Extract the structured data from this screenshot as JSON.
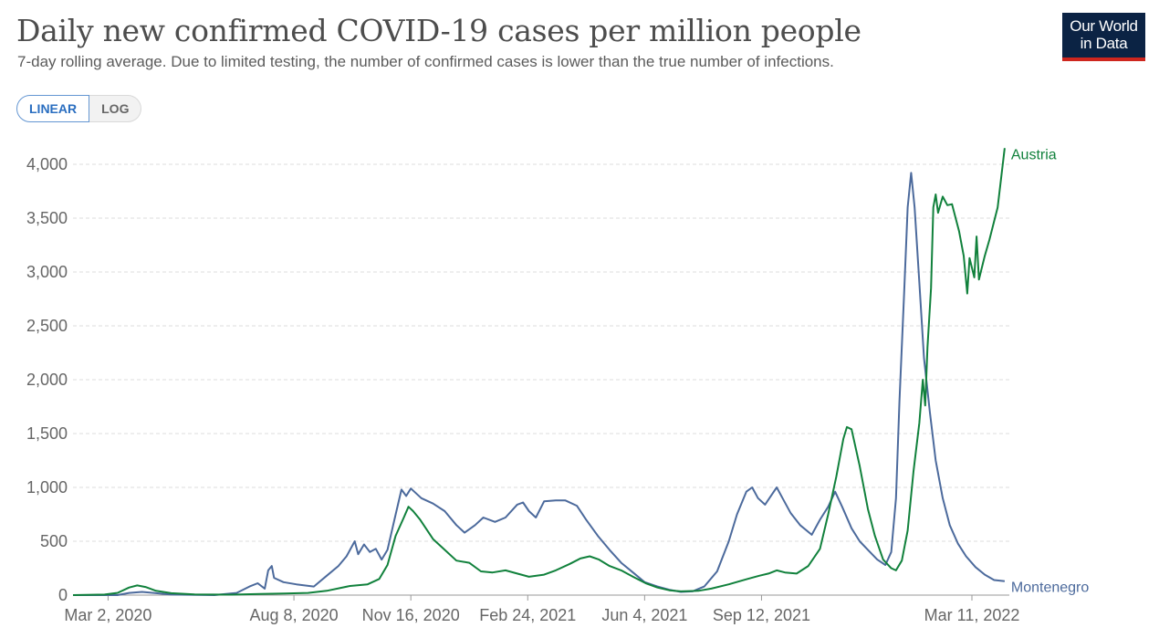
{
  "header": {
    "title": "Daily new confirmed COVID-19 cases per million people",
    "subtitle": "7-day rolling average. Due to limited testing, the number of confirmed cases is lower than the true number of infections."
  },
  "logo": {
    "line1": "Our World",
    "line2": "in Data",
    "bg_color": "#0b2344",
    "accent_color": "#ce261e"
  },
  "scale_toggle": {
    "linear_label": "LINEAR",
    "log_label": "LOG",
    "selected": "LINEAR"
  },
  "chart_data": {
    "type": "line",
    "title": "Daily new confirmed COVID-19 cases per million people",
    "x_start": "2020-02-01",
    "x_end": "2022-04-12",
    "ylim": [
      0,
      4200
    ],
    "y_ticks": [
      {
        "value": 0,
        "label": "0"
      },
      {
        "value": 500,
        "label": "500"
      },
      {
        "value": 1000,
        "label": "1,000"
      },
      {
        "value": 1500,
        "label": "1,500"
      },
      {
        "value": 2000,
        "label": "2,000"
      },
      {
        "value": 2500,
        "label": "2,500"
      },
      {
        "value": 3000,
        "label": "3,000"
      },
      {
        "value": 3500,
        "label": "3,500"
      },
      {
        "value": 4000,
        "label": "4,000"
      }
    ],
    "x_ticks": [
      {
        "date": "2020-03-02",
        "label": "Mar 2, 2020"
      },
      {
        "date": "2020-08-08",
        "label": "Aug 8, 2020"
      },
      {
        "date": "2020-11-16",
        "label": "Nov 16, 2020"
      },
      {
        "date": "2021-02-24",
        "label": "Feb 24, 2021"
      },
      {
        "date": "2021-06-04",
        "label": "Jun 4, 2021"
      },
      {
        "date": "2021-09-12",
        "label": "Sep 12, 2021"
      },
      {
        "date": "2022-03-11",
        "label": "Mar 11, 2022"
      }
    ],
    "grid": "horizontal dashed",
    "series": [
      {
        "name": "Austria",
        "color": "#11813c",
        "points": [
          [
            "2020-02-01",
            0
          ],
          [
            "2020-02-28",
            5
          ],
          [
            "2020-03-10",
            20
          ],
          [
            "2020-03-20",
            70
          ],
          [
            "2020-03-27",
            90
          ],
          [
            "2020-04-03",
            75
          ],
          [
            "2020-04-12",
            40
          ],
          [
            "2020-04-25",
            18
          ],
          [
            "2020-05-15",
            6
          ],
          [
            "2020-06-15",
            4
          ],
          [
            "2020-07-10",
            10
          ],
          [
            "2020-07-31",
            14
          ],
          [
            "2020-08-20",
            20
          ],
          [
            "2020-09-05",
            40
          ],
          [
            "2020-09-25",
            85
          ],
          [
            "2020-10-10",
            100
          ],
          [
            "2020-10-20",
            150
          ],
          [
            "2020-10-27",
            280
          ],
          [
            "2020-11-03",
            550
          ],
          [
            "2020-11-10",
            720
          ],
          [
            "2020-11-14",
            820
          ],
          [
            "2020-11-18",
            780
          ],
          [
            "2020-11-24",
            700
          ],
          [
            "2020-12-05",
            520
          ],
          [
            "2020-12-15",
            420
          ],
          [
            "2020-12-25",
            320
          ],
          [
            "2021-01-05",
            300
          ],
          [
            "2021-01-15",
            220
          ],
          [
            "2021-01-25",
            210
          ],
          [
            "2021-02-05",
            230
          ],
          [
            "2021-02-15",
            200
          ],
          [
            "2021-02-25",
            170
          ],
          [
            "2021-03-10",
            190
          ],
          [
            "2021-03-20",
            230
          ],
          [
            "2021-04-01",
            290
          ],
          [
            "2021-04-10",
            340
          ],
          [
            "2021-04-18",
            360
          ],
          [
            "2021-04-26",
            330
          ],
          [
            "2021-05-05",
            270
          ],
          [
            "2021-05-15",
            230
          ],
          [
            "2021-05-25",
            170
          ],
          [
            "2021-06-05",
            110
          ],
          [
            "2021-06-15",
            70
          ],
          [
            "2021-06-25",
            45
          ],
          [
            "2021-07-05",
            35
          ],
          [
            "2021-07-20",
            40
          ],
          [
            "2021-07-31",
            60
          ],
          [
            "2021-08-15",
            100
          ],
          [
            "2021-08-31",
            150
          ],
          [
            "2021-09-10",
            180
          ],
          [
            "2021-09-18",
            200
          ],
          [
            "2021-09-25",
            230
          ],
          [
            "2021-10-02",
            210
          ],
          [
            "2021-10-12",
            200
          ],
          [
            "2021-10-22",
            270
          ],
          [
            "2021-11-01",
            430
          ],
          [
            "2021-11-08",
            750
          ],
          [
            "2021-11-15",
            1100
          ],
          [
            "2021-11-21",
            1450
          ],
          [
            "2021-11-24",
            1560
          ],
          [
            "2021-11-28",
            1540
          ],
          [
            "2021-12-05",
            1200
          ],
          [
            "2021-12-12",
            800
          ],
          [
            "2021-12-18",
            550
          ],
          [
            "2021-12-25",
            330
          ],
          [
            "2022-01-01",
            250
          ],
          [
            "2022-01-05",
            230
          ],
          [
            "2022-01-10",
            320
          ],
          [
            "2022-01-15",
            600
          ],
          [
            "2022-01-20",
            1150
          ],
          [
            "2022-01-25",
            1600
          ],
          [
            "2022-01-28",
            2000
          ],
          [
            "2022-01-30",
            1760
          ],
          [
            "2022-02-01",
            2300
          ],
          [
            "2022-02-04",
            2850
          ],
          [
            "2022-02-06",
            3600
          ],
          [
            "2022-02-08",
            3720
          ],
          [
            "2022-02-10",
            3550
          ],
          [
            "2022-02-14",
            3700
          ],
          [
            "2022-02-18",
            3620
          ],
          [
            "2022-02-22",
            3630
          ],
          [
            "2022-02-28",
            3380
          ],
          [
            "2022-03-04",
            3150
          ],
          [
            "2022-03-07",
            2800
          ],
          [
            "2022-03-09",
            3130
          ],
          [
            "2022-03-13",
            2950
          ],
          [
            "2022-03-15",
            3330
          ],
          [
            "2022-03-17",
            2930
          ],
          [
            "2022-03-22",
            3150
          ],
          [
            "2022-03-26",
            3300
          ],
          [
            "2022-04-02",
            3600
          ],
          [
            "2022-04-08",
            4150
          ]
        ]
      },
      {
        "name": "Montenegro",
        "color": "#4c6a9c",
        "points": [
          [
            "2020-02-01",
            0
          ],
          [
            "2020-03-10",
            0
          ],
          [
            "2020-03-20",
            20
          ],
          [
            "2020-03-31",
            30
          ],
          [
            "2020-04-10",
            20
          ],
          [
            "2020-04-25",
            5
          ],
          [
            "2020-06-01",
            0
          ],
          [
            "2020-06-20",
            20
          ],
          [
            "2020-07-01",
            80
          ],
          [
            "2020-07-08",
            110
          ],
          [
            "2020-07-14",
            60
          ],
          [
            "2020-07-17",
            230
          ],
          [
            "2020-07-20",
            270
          ],
          [
            "2020-07-22",
            160
          ],
          [
            "2020-07-30",
            120
          ],
          [
            "2020-08-10",
            100
          ],
          [
            "2020-08-25",
            80
          ],
          [
            "2020-09-05",
            180
          ],
          [
            "2020-09-15",
            270
          ],
          [
            "2020-09-22",
            360
          ],
          [
            "2020-09-29",
            500
          ],
          [
            "2020-10-02",
            380
          ],
          [
            "2020-10-07",
            470
          ],
          [
            "2020-10-12",
            400
          ],
          [
            "2020-10-17",
            430
          ],
          [
            "2020-10-22",
            330
          ],
          [
            "2020-10-27",
            420
          ],
          [
            "2020-11-02",
            700
          ],
          [
            "2020-11-08",
            980
          ],
          [
            "2020-11-12",
            920
          ],
          [
            "2020-11-16",
            990
          ],
          [
            "2020-11-25",
            900
          ],
          [
            "2020-12-05",
            850
          ],
          [
            "2020-12-15",
            780
          ],
          [
            "2020-12-25",
            650
          ],
          [
            "2021-01-01",
            580
          ],
          [
            "2021-01-10",
            650
          ],
          [
            "2021-01-17",
            720
          ],
          [
            "2021-01-27",
            680
          ],
          [
            "2021-02-05",
            720
          ],
          [
            "2021-02-15",
            840
          ],
          [
            "2021-02-20",
            860
          ],
          [
            "2021-02-25",
            780
          ],
          [
            "2021-03-03",
            720
          ],
          [
            "2021-03-10",
            870
          ],
          [
            "2021-03-20",
            880
          ],
          [
            "2021-03-28",
            880
          ],
          [
            "2021-04-07",
            830
          ],
          [
            "2021-04-15",
            700
          ],
          [
            "2021-04-25",
            550
          ],
          [
            "2021-05-05",
            420
          ],
          [
            "2021-05-15",
            300
          ],
          [
            "2021-05-25",
            210
          ],
          [
            "2021-06-04",
            120
          ],
          [
            "2021-06-15",
            80
          ],
          [
            "2021-06-25",
            50
          ],
          [
            "2021-07-05",
            30
          ],
          [
            "2021-07-15",
            35
          ],
          [
            "2021-07-25",
            80
          ],
          [
            "2021-08-05",
            220
          ],
          [
            "2021-08-15",
            500
          ],
          [
            "2021-08-22",
            750
          ],
          [
            "2021-08-30",
            960
          ],
          [
            "2021-09-04",
            1000
          ],
          [
            "2021-09-09",
            900
          ],
          [
            "2021-09-15",
            840
          ],
          [
            "2021-09-20",
            920
          ],
          [
            "2021-09-25",
            1000
          ],
          [
            "2021-09-30",
            900
          ],
          [
            "2021-10-07",
            760
          ],
          [
            "2021-10-15",
            650
          ],
          [
            "2021-10-25",
            560
          ],
          [
            "2021-11-01",
            700
          ],
          [
            "2021-11-08",
            820
          ],
          [
            "2021-11-14",
            960
          ],
          [
            "2021-11-20",
            820
          ],
          [
            "2021-11-28",
            620
          ],
          [
            "2021-12-05",
            500
          ],
          [
            "2021-12-12",
            420
          ],
          [
            "2021-12-20",
            330
          ],
          [
            "2021-12-27",
            280
          ],
          [
            "2022-01-01",
            400
          ],
          [
            "2022-01-05",
            900
          ],
          [
            "2022-01-08",
            1800
          ],
          [
            "2022-01-12",
            2800
          ],
          [
            "2022-01-15",
            3600
          ],
          [
            "2022-01-18",
            3920
          ],
          [
            "2022-01-21",
            3600
          ],
          [
            "2022-01-25",
            2900
          ],
          [
            "2022-01-29",
            2200
          ],
          [
            "2022-02-03",
            1700
          ],
          [
            "2022-02-08",
            1250
          ],
          [
            "2022-02-14",
            900
          ],
          [
            "2022-02-20",
            650
          ],
          [
            "2022-02-27",
            480
          ],
          [
            "2022-03-06",
            360
          ],
          [
            "2022-03-14",
            260
          ],
          [
            "2022-03-22",
            190
          ],
          [
            "2022-03-30",
            140
          ],
          [
            "2022-04-08",
            130
          ]
        ]
      }
    ]
  }
}
